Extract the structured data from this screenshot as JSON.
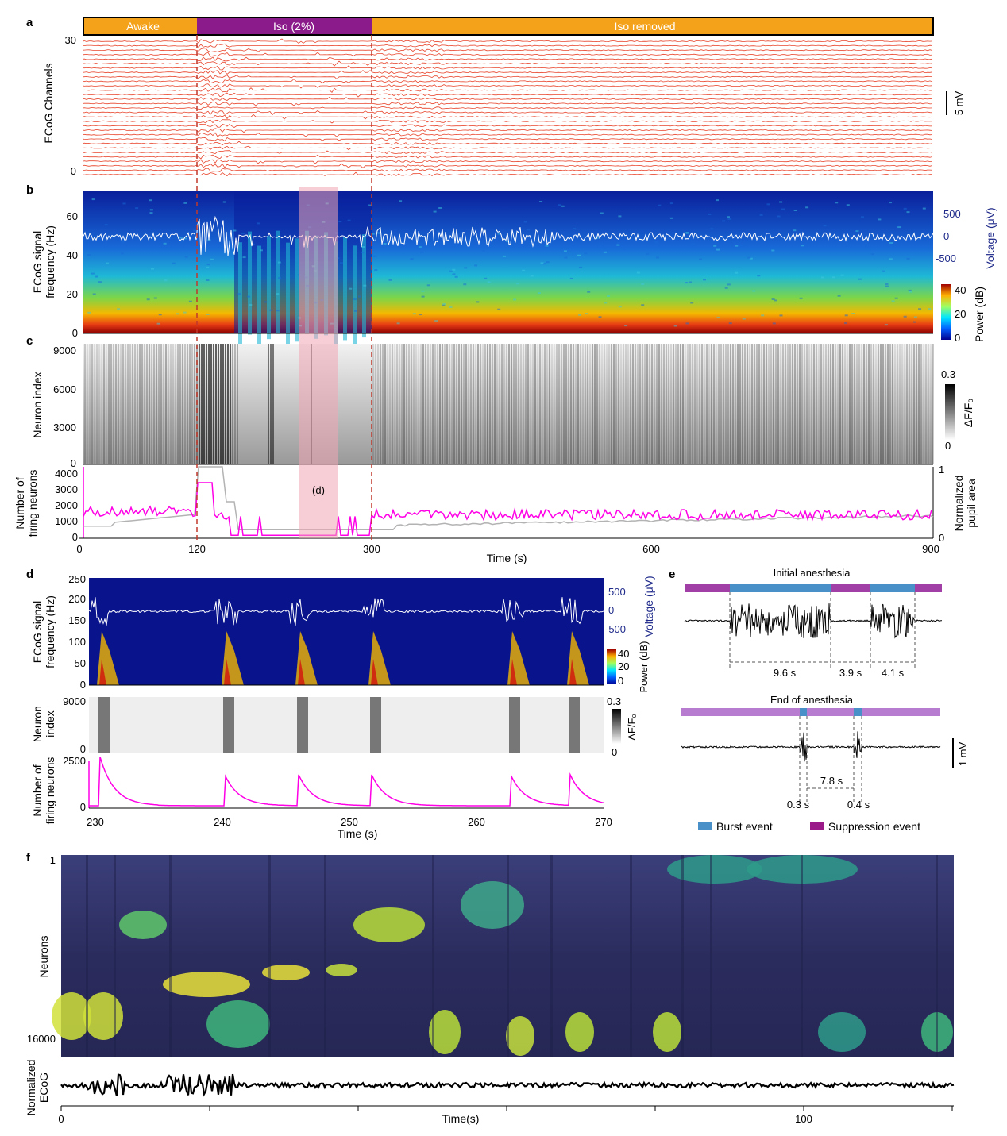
{
  "colors": {
    "awake": "#F5A21B",
    "iso": "#8B1A8A",
    "ecog_trace": "#E8452C",
    "marker_line": "#C0392B",
    "highlight": "#F3A6B5",
    "firing": "#FF00E6",
    "pupil": "#B3B3B3",
    "voltage_axis": "#1F2A8A",
    "burst": "#4A90C8",
    "suppression": "#A23FA7",
    "suppression_bar": "#B77BD0",
    "heatmap_bg": "#2E2F6E"
  },
  "panel_letters": {
    "a": "a",
    "b": "b",
    "c": "c",
    "d": "d",
    "e": "e",
    "f": "f"
  },
  "panel_a": {
    "phase_awake": "Awake",
    "phase_iso": "Iso (2%)",
    "phase_removed": "Iso removed",
    "ylabel": "ECoG Channels",
    "ytick_top": "30",
    "ytick_bottom": "0",
    "scale_label": "5 mV"
  },
  "panel_b": {
    "ylabel_line1": "ECoG signal",
    "ylabel_line2": "frequency (Hz)",
    "yticks": [
      "0",
      "20",
      "40",
      "60"
    ],
    "voltage_label": "Voltage (μV)",
    "voltage_ticks": [
      "500",
      "0",
      "-500"
    ],
    "power_label": "Power (dB)",
    "power_ticks": [
      "40",
      "20",
      "0"
    ]
  },
  "panel_c": {
    "ylabel": "Neuron index",
    "yticks": [
      "0",
      "3000",
      "6000",
      "9000"
    ],
    "df_label": "ΔF/F₀",
    "df_ticks": [
      "0.3",
      "0"
    ],
    "firing_label_line1": "Number of",
    "firing_label_line2": "firing neurons",
    "firing_ticks": [
      "0",
      "1000",
      "2000",
      "3000",
      "4000"
    ],
    "pupil_label_line1": "Normalized",
    "pupil_label_line2": "pupil area",
    "pupil_ticks": [
      "0",
      "1"
    ],
    "highlight_label": "(d)",
    "xlabel": "Time (s)",
    "xticks": [
      "0",
      "120",
      "300",
      "600",
      "900"
    ]
  },
  "panel_d": {
    "ylabel_line1": "ECoG signal",
    "ylabel_line2": "frequency (Hz)",
    "yticks": [
      "0",
      "50",
      "100",
      "150",
      "200",
      "250"
    ],
    "voltage_label": "Voltage (μV)",
    "voltage_ticks": [
      "500",
      "0",
      "-500"
    ],
    "power_label": "Power (dB)",
    "power_ticks": [
      "40",
      "20",
      "0"
    ],
    "neuron_label_line1": "Neuron",
    "neuron_label_line2": "index",
    "neuron_ticks": [
      "0",
      "9000"
    ],
    "df_label": "ΔF/F₀",
    "df_ticks": [
      "0.3",
      "0"
    ],
    "firing_label_line1": "Number of",
    "firing_label_line2": "firing neurons",
    "firing_ticks": [
      "0",
      "2500"
    ],
    "xlabel": "Time (s)",
    "xticks": [
      "230",
      "240",
      "250",
      "260",
      "270"
    ]
  },
  "panel_e": {
    "title_initial": "Initial anesthesia",
    "title_end": "End of anesthesia",
    "dur_1": "9.6 s",
    "dur_2": "3.9 s",
    "dur_3": "4.1 s",
    "dur_4": "7.8 s",
    "dur_5": "0.3 s",
    "dur_6": "0.4 s",
    "scale_label": "1 mV",
    "legend_burst": "Burst event",
    "legend_suppression": "Suppression event"
  },
  "panel_f": {
    "ylabel": "Neurons",
    "ytick_top": "1",
    "ytick_bottom": "16000",
    "ecog_label_line1": "Normalized",
    "ecog_label_line2": "ECoG",
    "xlabel": "Time(s)",
    "xticks": [
      "0",
      "100"
    ]
  }
}
